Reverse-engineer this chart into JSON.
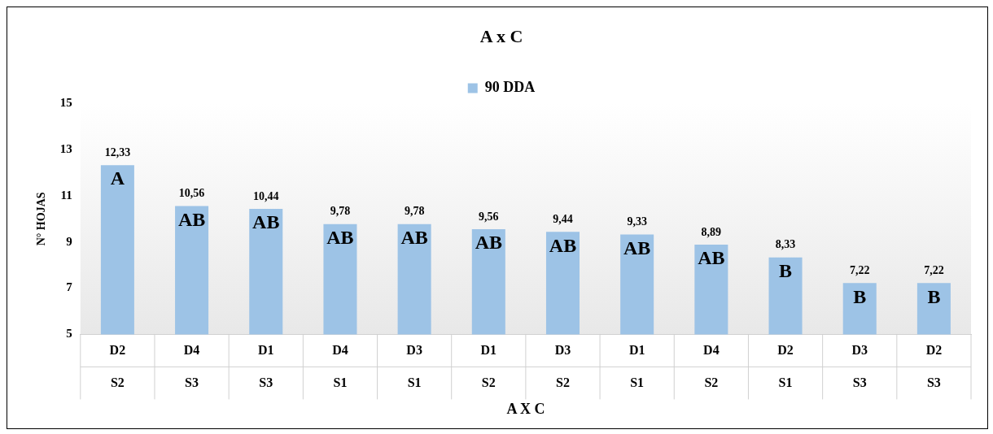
{
  "chart_data": {
    "type": "bar",
    "title": "A x C",
    "xlabel": "A X C",
    "ylabel": "N° HOJAS",
    "categories": [
      "D2\nS2",
      "D4\nS3",
      "D1\nS3",
      "D4\nS1",
      "D3\nS1",
      "D1\nS2",
      "D3\nS2",
      "D1\nS1",
      "D4\nS2",
      "D2\nS1",
      "D3\nS3",
      "D2\nS3"
    ],
    "series": [
      {
        "name": "90 DDA",
        "color": "#9dc3e6",
        "values": [
          12.33,
          10.56,
          10.44,
          9.78,
          9.78,
          9.56,
          9.44,
          9.33,
          8.89,
          8.33,
          7.22,
          7.22
        ],
        "value_labels": [
          "12,33",
          "10,56",
          "10,44",
          "9,78",
          "9,78",
          "9,56",
          "9,44",
          "9,33",
          "8,89",
          "8,33",
          "7,22",
          "7,22"
        ]
      }
    ],
    "ylim": [
      5,
      15
    ],
    "yticks": [
      5,
      7,
      9,
      11,
      13,
      15
    ],
    "grid": false,
    "legend": "top",
    "annotations": [
      "A",
      "AB",
      "AB",
      "AB",
      "AB",
      "AB",
      "AB",
      "AB",
      "AB",
      "B",
      "B",
      "B"
    ]
  }
}
